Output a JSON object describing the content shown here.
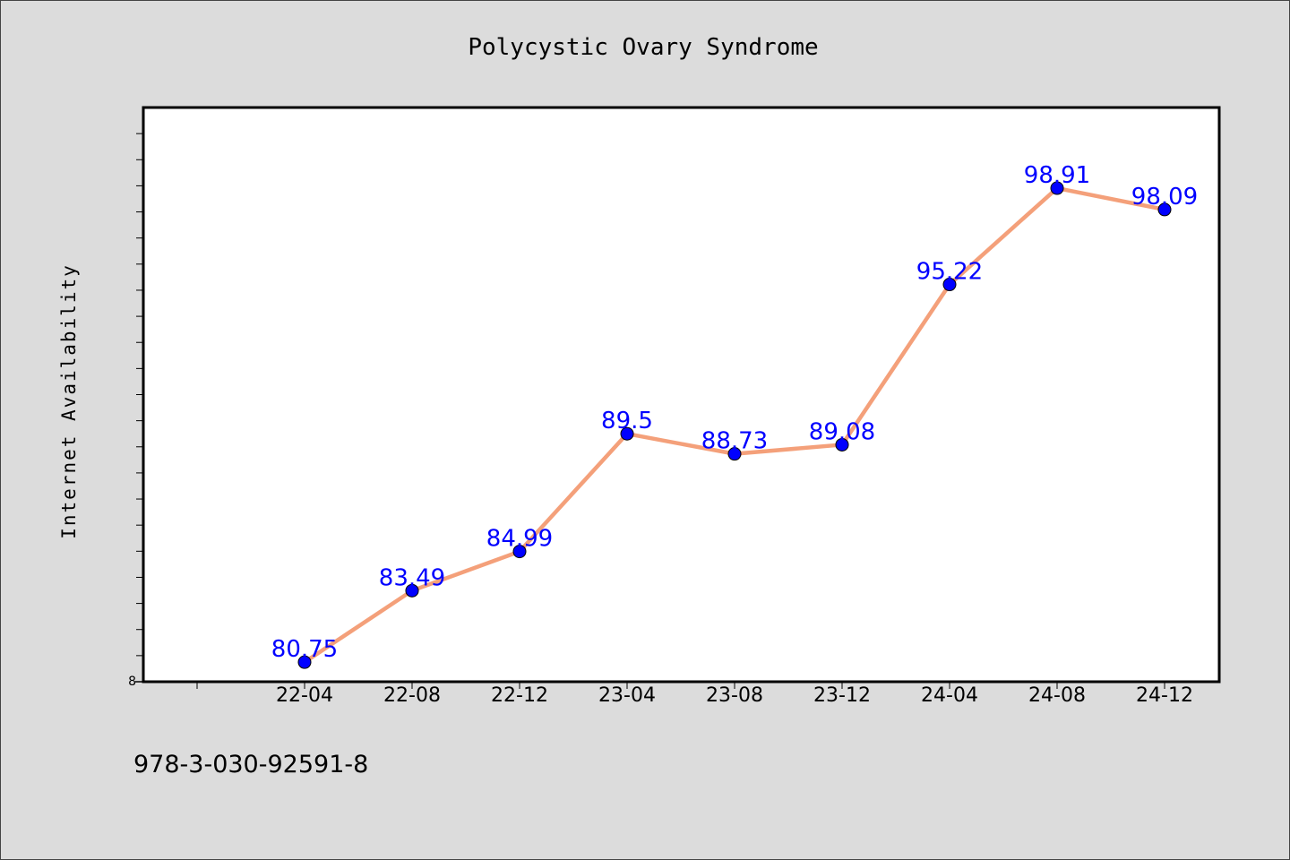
{
  "chart_data": {
    "type": "line",
    "title": "Polycystic Ovary Syndrome",
    "xlabel": "",
    "ylabel": "Internet Availability",
    "categories": [
      "22-04",
      "22-08",
      "22-12",
      "23-04",
      "23-08",
      "23-12",
      "24-04",
      "24-08",
      "24-12"
    ],
    "series": [
      {
        "values": [
          80.75,
          83.49,
          84.99,
          89.5,
          88.73,
          89.08,
          95.22,
          98.91,
          98.09
        ]
      }
    ],
    "y_tick_label": "8",
    "ylim": [
      80.0,
      102.0
    ],
    "grid": false,
    "line_color": "#f4a07a",
    "marker_color": "#0000ff",
    "label_color": "#0000ff"
  },
  "footer": {
    "isbn": "978-3-030-92591-8"
  }
}
